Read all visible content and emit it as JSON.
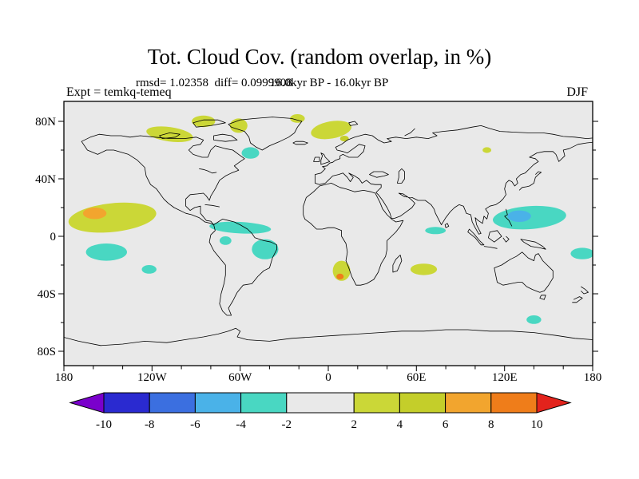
{
  "header": {
    "title": "Tot. Cloud Cov. (random overlap, in %)",
    "stats": "rmsd= 1.02358  diff= 0.0999908",
    "period": "16.0kyr BP - 16.0kyr BP",
    "experiment": "Expt = temkq-temeq",
    "season": "DJF"
  },
  "chart_data": {
    "type": "heatmap",
    "title": "Tot. Cloud Cov. (random overlap, in %)",
    "subtitle": "16.0kyr BP - 16.0kyr BP",
    "experiment": "temkq-temeq",
    "season": "DJF",
    "units": "%",
    "stats": {
      "rmsd": 1.02358,
      "diff": 0.0999908
    },
    "projection": "equirectangular",
    "lon_range": [
      -180,
      180
    ],
    "lat_range": [
      -90,
      90
    ],
    "x_axis": {
      "major": [
        {
          "lon": -180,
          "label": "180"
        },
        {
          "lon": -120,
          "label": "120W"
        },
        {
          "lon": -60,
          "label": "60W"
        },
        {
          "lon": 0,
          "label": "0"
        },
        {
          "lon": 60,
          "label": "60E"
        },
        {
          "lon": 120,
          "label": "120E"
        },
        {
          "lon": 180,
          "label": "180"
        }
      ],
      "minor_step": 20
    },
    "y_axis": {
      "major": [
        {
          "lat": 80,
          "label": "80N"
        },
        {
          "lat": 40,
          "label": "40N"
        },
        {
          "lat": 0,
          "label": "0"
        },
        {
          "lat": -40,
          "label": "40S"
        },
        {
          "lat": -80,
          "label": "80S"
        }
      ],
      "minor_step": 20
    },
    "colorbar": {
      "labels": [
        "-10",
        "-8",
        "-6",
        "-4",
        "-2",
        "2",
        "4",
        "6",
        "8",
        "10"
      ],
      "levels": [
        -10,
        -8,
        -6,
        -4,
        -2,
        2,
        4,
        6,
        8,
        10
      ],
      "segment_colors": [
        "#7a00cc",
        "#2a2ad0",
        "#3b6fe0",
        "#4ab2e8",
        "#49d7c2",
        "#e9e9e9",
        "#cbd737",
        "#c4ce2a",
        "#f2a52e",
        "#ef7d1a",
        "#e3231c"
      ]
    },
    "level_colors": {
      "-6to-4": "#4ab2e8",
      "-4to-2": "#49d7c2",
      "2to4": "#cbd737",
      "4to6": "#c4ce2a",
      "6to8": "#f2a52e",
      "8to10": "#ef7d1a"
    },
    "anomaly_regions": [
      {
        "name": "ne-pacific-positive",
        "lon": -147,
        "lat": 13,
        "rlon": 30,
        "rlat": 10,
        "rot": -6,
        "level": "2to4"
      },
      {
        "name": "ne-pacific-orange-core",
        "lon": -159,
        "lat": 16,
        "rlon": 8,
        "rlat": 4,
        "rot": 0,
        "level": "6to8"
      },
      {
        "name": "s-pacific-negative",
        "lon": -151,
        "lat": -11,
        "rlon": 14,
        "rlat": 6,
        "rot": 0,
        "level": "-4to-2"
      },
      {
        "name": "se-pacific-negative",
        "lon": -122,
        "lat": -23,
        "rlon": 5,
        "rlat": 3,
        "rot": 0,
        "level": "-4to-2"
      },
      {
        "name": "canadian-arctic-positive",
        "lon": -108,
        "lat": 71,
        "rlon": 16,
        "rlat": 5,
        "rot": 8,
        "level": "2to4"
      },
      {
        "name": "arctic-islands-positive",
        "lon": -85,
        "lat": 80,
        "rlon": 8,
        "rlat": 4,
        "rot": 0,
        "level": "2to4"
      },
      {
        "name": "greenland-positive",
        "lon": -61,
        "lat": 77,
        "rlon": 6,
        "rlat": 5,
        "rot": 0,
        "level": "2to4"
      },
      {
        "name": "n-atlantic-negative",
        "lon": -53,
        "lat": 58,
        "rlon": 6,
        "rlat": 4,
        "rot": 0,
        "level": "-4to-2"
      },
      {
        "name": "ne-greenland-positive",
        "lon": -21,
        "lat": 82,
        "rlon": 5,
        "rlat": 3,
        "rot": 0,
        "level": "2to4"
      },
      {
        "name": "norwegian-sea-positive",
        "lon": 2,
        "lat": 74,
        "rlon": 14,
        "rlat": 6,
        "rot": -10,
        "level": "2to4"
      },
      {
        "name": "scandinavia-core",
        "lon": 11,
        "lat": 68,
        "rlon": 3,
        "rlat": 2,
        "rot": 0,
        "level": "4to6"
      },
      {
        "name": "amazon-negative",
        "lon": -60,
        "lat": 6,
        "rlon": 21,
        "rlat": 4,
        "rot": 3,
        "level": "-4to-2"
      },
      {
        "name": "brazil-negative",
        "lon": -43,
        "lat": -9,
        "rlon": 9,
        "rlat": 7,
        "rot": 0,
        "level": "-4to-2"
      },
      {
        "name": "peru-negative",
        "lon": -70,
        "lat": -3,
        "rlon": 4,
        "rlat": 3,
        "rot": 0,
        "level": "-4to-2"
      },
      {
        "name": "namibia-positive",
        "lon": 9,
        "lat": -24,
        "rlon": 6,
        "rlat": 7,
        "rot": 0,
        "level": "2to4"
      },
      {
        "name": "namibia-red-core",
        "lon": 8,
        "lat": -28,
        "rlon": 2.5,
        "rlat": 2,
        "rot": 0,
        "level": "8to10"
      },
      {
        "name": "s-indian-ocean-positive",
        "lon": 65,
        "lat": -23,
        "rlon": 9,
        "rlat": 4,
        "rot": 0,
        "level": "2to4"
      },
      {
        "name": "arabian-sea-negative",
        "lon": 73,
        "lat": 4,
        "rlon": 7,
        "rlat": 2.5,
        "rot": 0,
        "level": "-4to-2"
      },
      {
        "name": "w-pacific-negative",
        "lon": 137,
        "lat": 13,
        "rlon": 25,
        "rlat": 8,
        "rot": -4,
        "level": "-4to-2"
      },
      {
        "name": "philippine-sea-blue-core",
        "lon": 130,
        "lat": 14,
        "rlon": 8,
        "rlat": 4,
        "rot": 0,
        "level": "-6to-4"
      },
      {
        "name": "date-line-negative",
        "lon": 173,
        "lat": -12,
        "rlon": 8,
        "rlat": 4,
        "rot": 0,
        "level": "-4to-2"
      },
      {
        "name": "southern-ocean-negative",
        "lon": 140,
        "lat": -58,
        "rlon": 5,
        "rlat": 3,
        "rot": 0,
        "level": "-4to-2"
      },
      {
        "name": "siberia-positive",
        "lon": 108,
        "lat": 60,
        "rlon": 3,
        "rlat": 2,
        "rot": 0,
        "level": "2to4"
      }
    ]
  }
}
